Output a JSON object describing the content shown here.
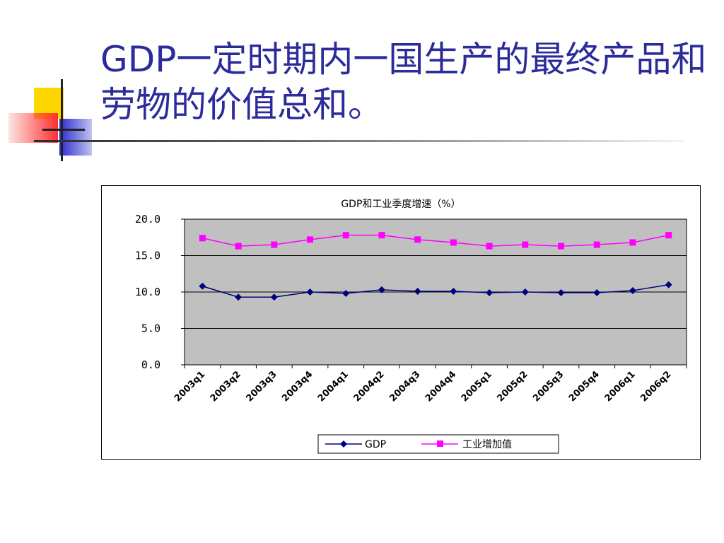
{
  "slide": {
    "title": "GDP一定时期内一国生产的最终产品和劳物的价值总和。"
  },
  "colors": {
    "title": "#2b2b9b",
    "deco_yellow": "#ffd700",
    "deco_red": "#ff3030",
    "deco_blue": "#2b2bcc",
    "plot_bg": "#c0c0c0",
    "gdp_series": "#000080",
    "industry_series": "#ff00ff"
  },
  "chart_data": {
    "type": "line",
    "title": "GDP和工业季度增速（%）",
    "categories": [
      "2003q1",
      "2003q2",
      "2003q3",
      "2003q4",
      "2004q1",
      "2004q2",
      "2004q3",
      "2004q4",
      "2005q1",
      "2005q2",
      "2005q3",
      "2005q4",
      "2006q1",
      "2006q2"
    ],
    "series": [
      {
        "name": "GDP",
        "values": [
          10.8,
          9.3,
          9.3,
          10.0,
          9.8,
          10.3,
          10.1,
          10.1,
          9.9,
          10.0,
          9.9,
          9.9,
          10.2,
          11.0
        ],
        "marker": "diamond"
      },
      {
        "name": "工业增加值",
        "values": [
          17.4,
          16.3,
          16.5,
          17.2,
          17.8,
          17.8,
          17.2,
          16.8,
          16.3,
          16.5,
          16.3,
          16.5,
          16.8,
          17.8
        ],
        "marker": "square"
      }
    ],
    "y_ticks": [
      "20.0",
      "15.0",
      "10.0",
      "5.0",
      "0.0"
    ],
    "ylim": [
      0,
      20
    ],
    "grid": true,
    "legend_position": "bottom"
  }
}
